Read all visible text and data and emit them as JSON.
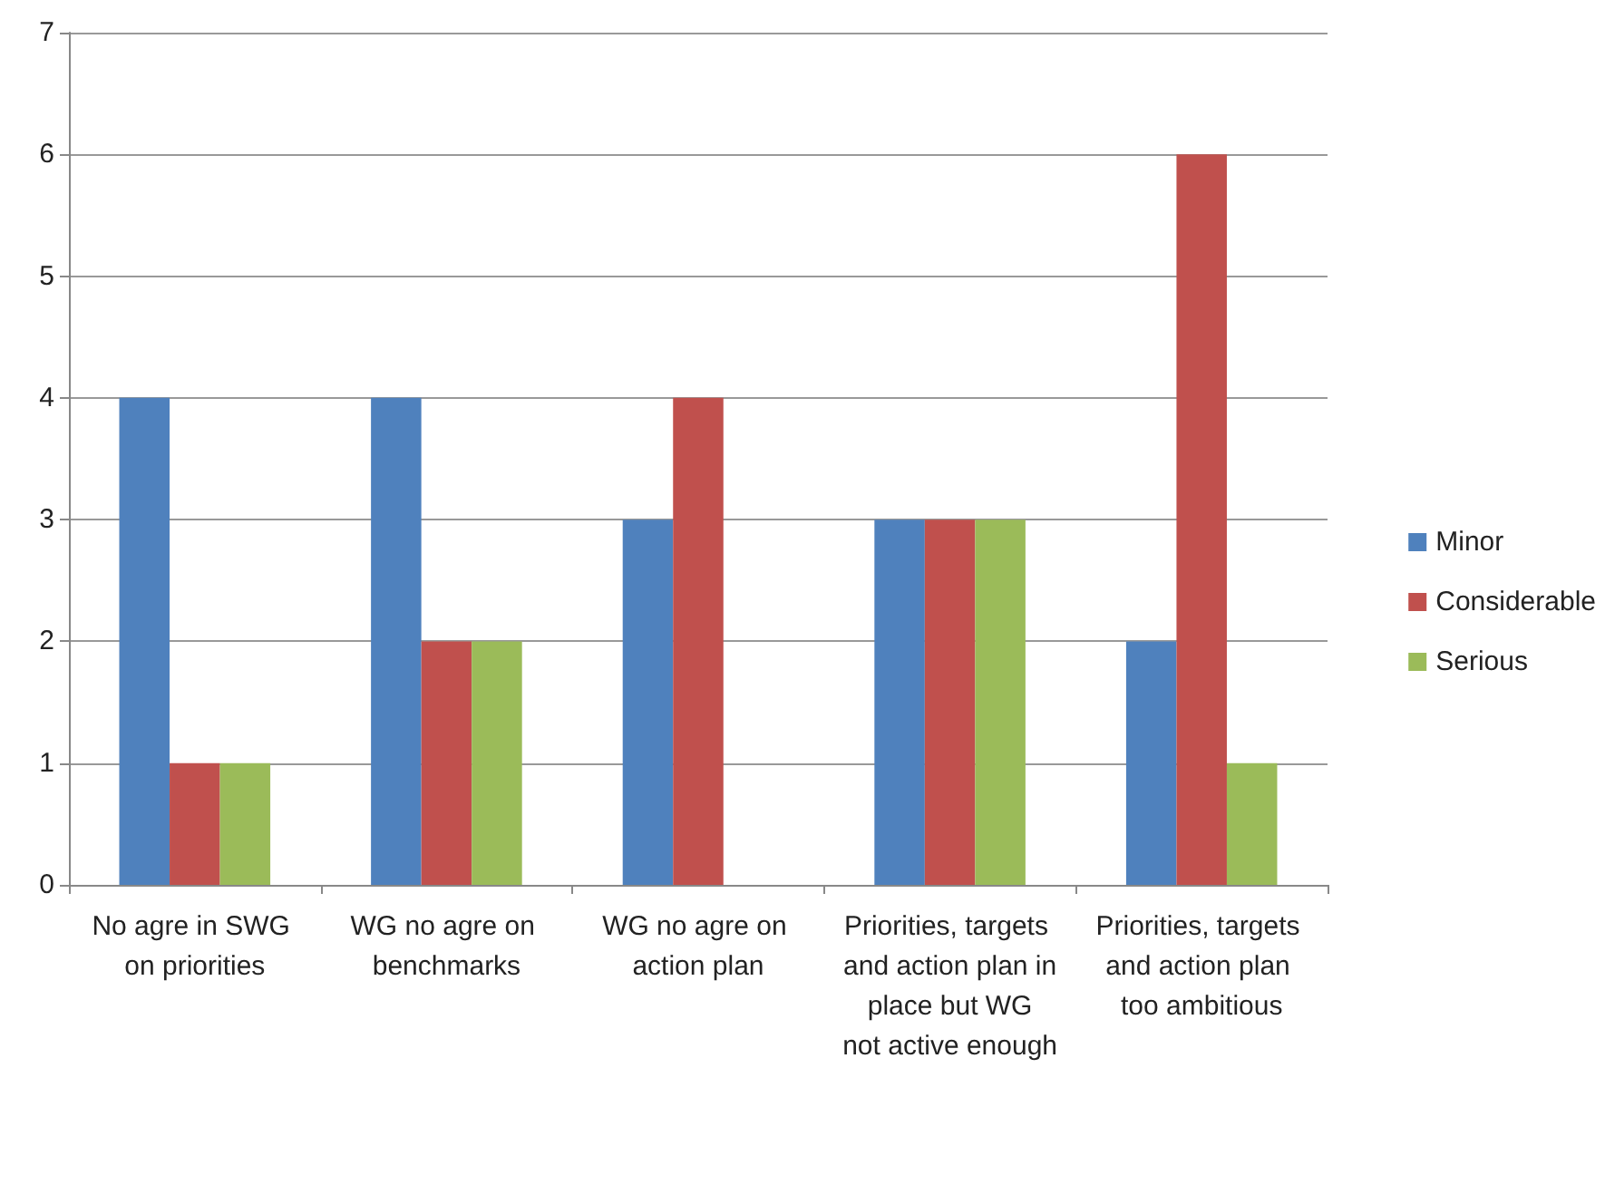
{
  "chart_data": {
    "type": "bar",
    "categories": [
      "No agre in SWG on priorities",
      "WG no agre on benchmarks",
      "WG no agre on action plan",
      "Priorities, targets and action plan in place but WG not active enough",
      "Priorities, targets and action plan too ambitious"
    ],
    "series": [
      {
        "name": "Minor",
        "color": "#4f81bd",
        "values": [
          4,
          4,
          3,
          3,
          2
        ]
      },
      {
        "name": "Considerable",
        "color": "#c0504d",
        "values": [
          1,
          2,
          4,
          3,
          6
        ]
      },
      {
        "name": "Serious",
        "color": "#9bbb59",
        "values": [
          1,
          2,
          0,
          3,
          1
        ]
      }
    ],
    "ylim": [
      0,
      7
    ],
    "yticks": [
      0,
      1,
      2,
      3,
      4,
      5,
      6,
      7
    ],
    "grid": "y",
    "legend": "right"
  }
}
